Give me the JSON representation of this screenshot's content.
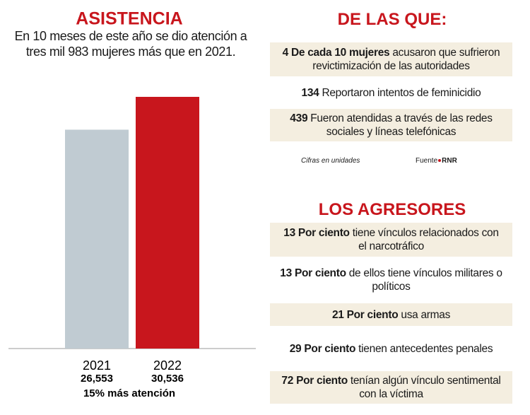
{
  "chart_data": {
    "type": "bar",
    "title": "ASISTENCIA",
    "subtitle": "En 10 meses de este año se dio atención a tres mil 983 mujeres más que en 2021.",
    "categories": [
      "2021",
      "2022"
    ],
    "values": [
      26553,
      30536
    ],
    "value_labels": [
      "26,553",
      "30,536"
    ],
    "colors": [
      "#c0cbd2",
      "#c8161d"
    ],
    "annotation": "15% más atención"
  },
  "de_las_que": {
    "title": "DE LAS QUE:",
    "items": [
      {
        "bold": "4 De cada 10 mujeres",
        "text": "acusaron que sufrieron revictimización de las autoridades"
      },
      {
        "bold": "134",
        "text": "Reportaron intentos de feminicidio"
      },
      {
        "bold": "439",
        "text": "Fueron atendidas a través de las redes sociales y líneas telefónicas"
      }
    ],
    "note": "Cifras en unidades",
    "source_label": "Fuente",
    "source": "RNR"
  },
  "agresores": {
    "title": "LOS AGRESORES",
    "items": [
      {
        "bold": "13 Por ciento",
        "text": "tiene vínculos relacionados con el narcotráfico"
      },
      {
        "bold": "13 Por ciento",
        "text": "de ellos tiene vínculos militares o políticos"
      },
      {
        "bold": "21 Por ciento",
        "text": "usa armas"
      },
      {
        "bold": "29 Por ciento",
        "text": "tienen antecedentes penales"
      },
      {
        "bold": "72 Por ciento",
        "text": "tenían algún vínculo sentimental con la víctima"
      }
    ]
  }
}
